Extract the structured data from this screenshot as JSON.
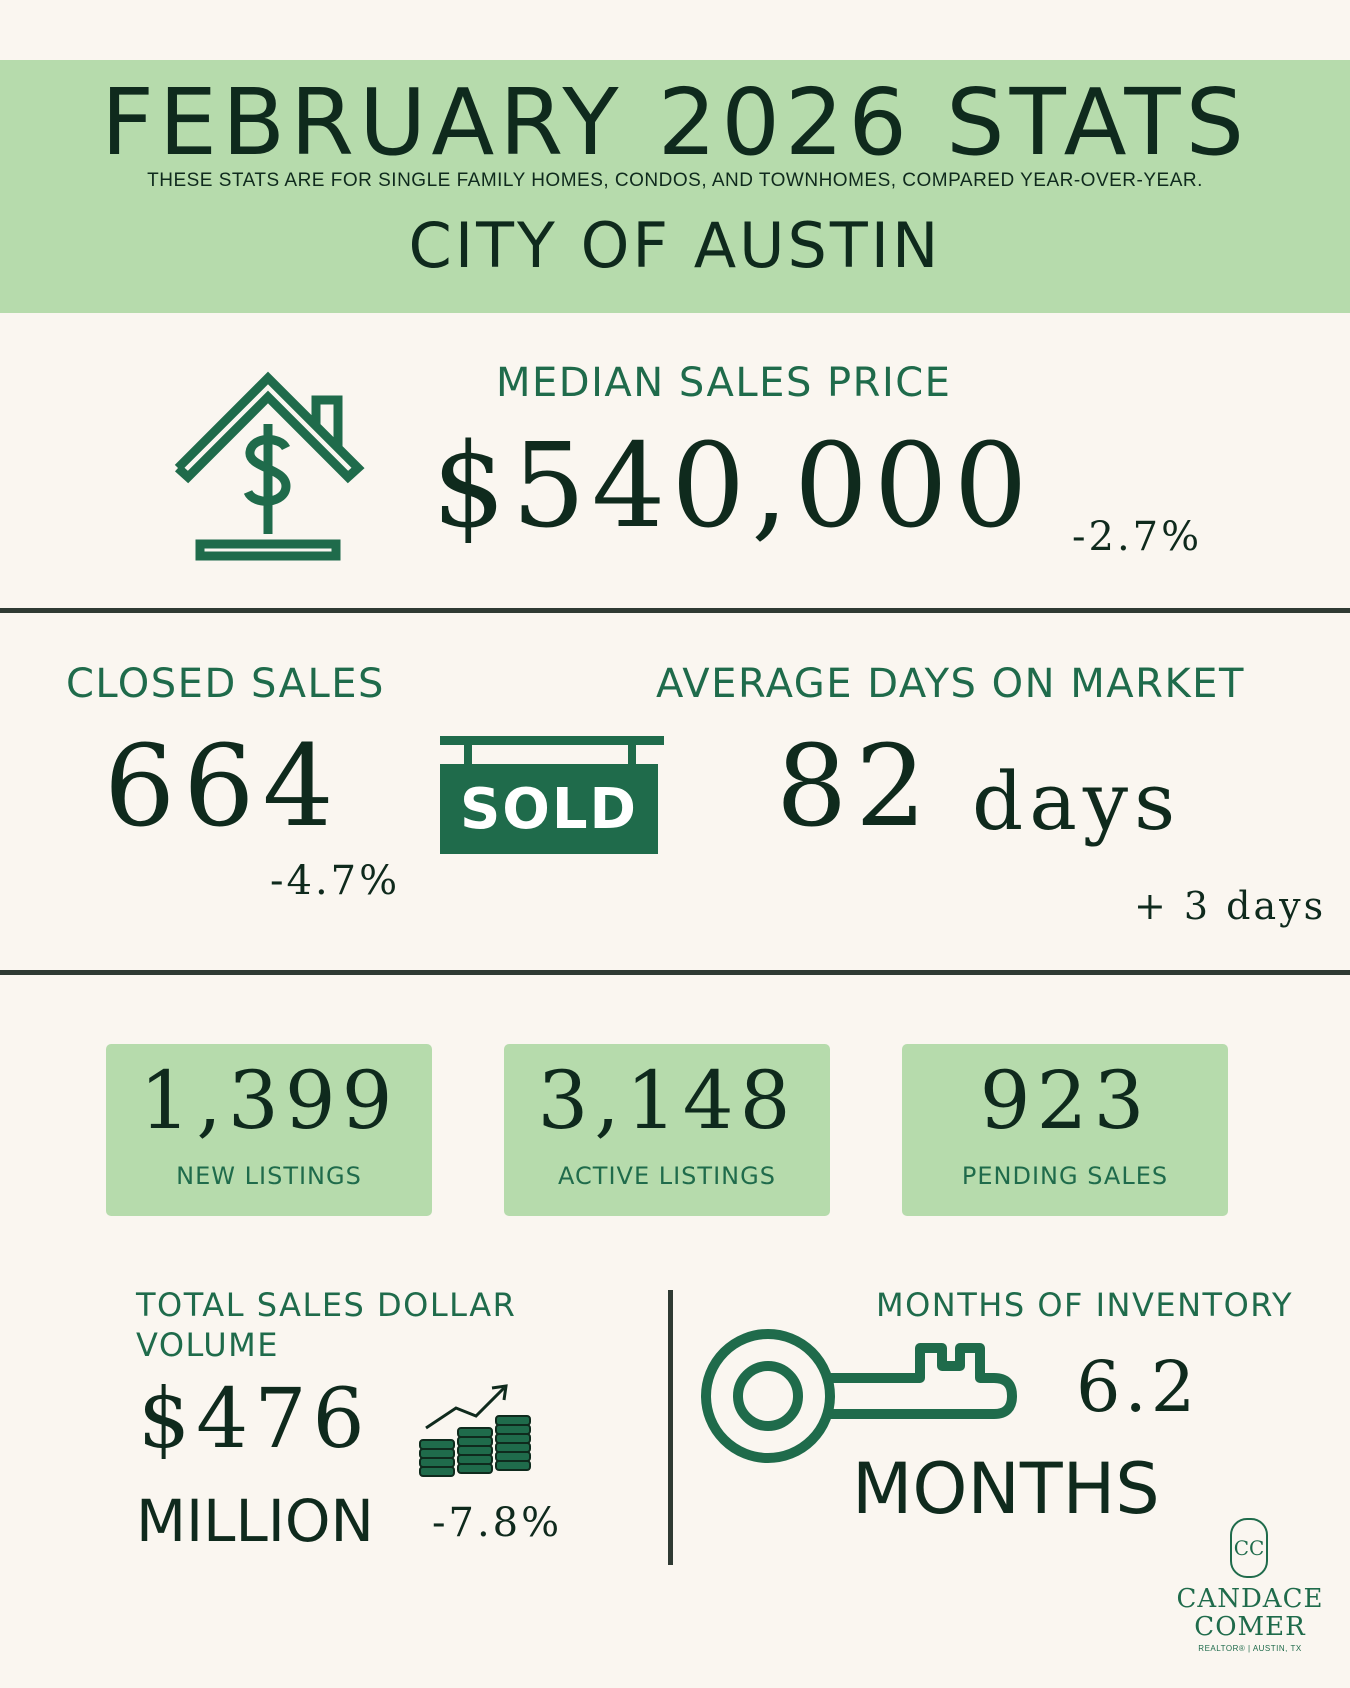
{
  "header": {
    "title": "FEBRUARY 2026 STATS",
    "subtitle": "THESE STATS ARE FOR SINGLE FAMILY HOMES, CONDOS, AND TOWNHOMES, COMPARED YEAR-OVER-YEAR.",
    "city": "CITY OF AUSTIN"
  },
  "median_price": {
    "label": "MEDIAN SALES PRICE",
    "value": "$540,000",
    "change": "-2.7%",
    "icon": "house-dollar-icon"
  },
  "closed_sales": {
    "label": "CLOSED SALES",
    "value": "664",
    "change": "-4.7%"
  },
  "sold_sign": {
    "text": "SOLD",
    "icon": "sold-sign-icon"
  },
  "days_on_market": {
    "label": "AVERAGE DAYS ON MARKET",
    "value": "82",
    "unit": "days",
    "change": "+ 3 days"
  },
  "boxes": [
    {
      "value": "1,399",
      "label": "NEW LISTINGS"
    },
    {
      "value": "3,148",
      "label": "ACTIVE LISTINGS"
    },
    {
      "value": "923",
      "label": "PENDING SALES"
    }
  ],
  "volume": {
    "label_line1": "TOTAL SALES DOLLAR",
    "label_line2": "VOLUME",
    "value": "$476",
    "unit": "MILLION",
    "change": "-7.8%",
    "icon": "coins-growth-icon"
  },
  "inventory": {
    "label": "MONTHS OF INVENTORY",
    "value": "6.2",
    "unit": "MONTHS",
    "icon": "key-icon"
  },
  "brand": {
    "monogram": "CC",
    "name_line1": "CANDACE",
    "name_line2": "COMER",
    "tagline": "REALTOR® | AUSTIN, TX"
  },
  "colors": {
    "background": "#faf6f0",
    "header_green": "#b6dbac",
    "accent_green": "#1f6b4b",
    "text_dark": "#0f2a1d"
  }
}
